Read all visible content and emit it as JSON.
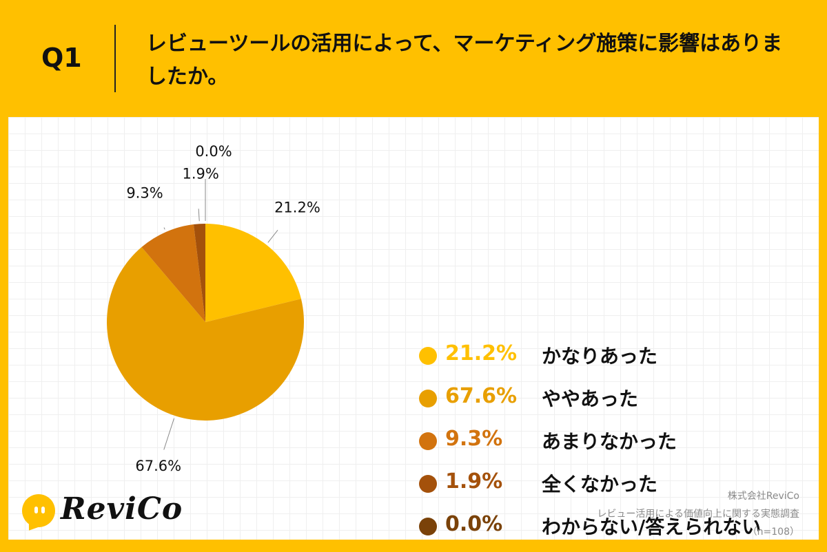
{
  "header": {
    "q_label": "Q1",
    "question": "レビューツールの活用によって、マーケティング施策に影響はありましたか。"
  },
  "colors": {
    "background": "#FFC000",
    "panel": "#FFFFFF",
    "text": "#111111"
  },
  "chart_data": {
    "type": "pie",
    "title": "レビューツールの活用によって、マーケティング施策に影響はありましたか。",
    "categories": [
      "かなりあった",
      "ややあった",
      "あまりなかった",
      "全くなかった",
      "わからない/答えられない"
    ],
    "values": [
      21.2,
      67.6,
      9.3,
      1.9,
      0.0
    ],
    "labels": [
      "21.2%",
      "67.6%",
      "9.3%",
      "1.9%",
      "0.0%"
    ],
    "colors": [
      "#FFC000",
      "#E89F00",
      "#D2730E",
      "#A4510B",
      "#7A4209"
    ],
    "start_angle_deg": 0,
    "direction": "clockwise",
    "legend": "right"
  },
  "source": {
    "company": "株式会社ReviCo",
    "survey": "レビュー活用による価値向上に関する実態調査",
    "sample": "（n=108）"
  },
  "logo": {
    "text": "ReviCo"
  }
}
